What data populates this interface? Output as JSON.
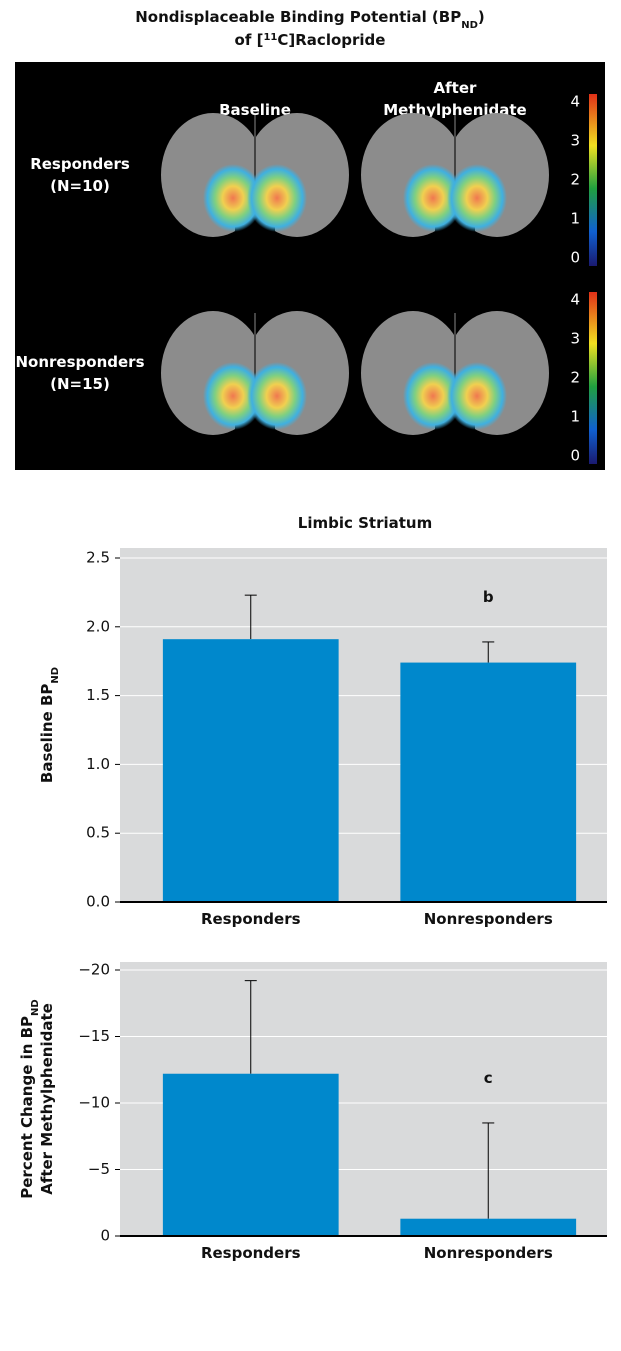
{
  "image_panel": {
    "title": {
      "line1": [
        "Nondisplaceable Binding Potential (BP",
        "ND",
        ")"
      ],
      "line2": [
        "of [",
        "11",
        "C]Raclopride"
      ]
    },
    "columns": [
      [
        "Baseline"
      ],
      [
        "After",
        "Methylphenidate"
      ]
    ],
    "rows": [
      {
        "label": [
          "Responders",
          "(N=10)"
        ],
        "colorbar_ticks": [
          0,
          1,
          2,
          3,
          4
        ]
      },
      {
        "label": [
          "Nonresponders",
          "(N=15)"
        ],
        "colorbar_ticks": [
          0,
          1,
          2,
          3,
          4
        ]
      }
    ]
  },
  "chart_data": [
    {
      "type": "bar",
      "title": "Limbic Striatum",
      "ylabel": [
        [
          "Baseline BP",
          "ND"
        ]
      ],
      "categories": [
        "Responders",
        "Nonresponders"
      ],
      "values": [
        1.91,
        1.74
      ],
      "errors": [
        0.32,
        0.15
      ],
      "annotations": [
        null,
        "b"
      ],
      "color": "#0088cc",
      "grid": true,
      "ylim": [
        0,
        2.5
      ],
      "yticks": [
        {
          "value": 0,
          "label": "0.0"
        },
        0.5,
        {
          "value": 1,
          "label": "1.0"
        },
        1.5,
        {
          "value": 2,
          "label": "2.0"
        },
        2.5
      ]
    },
    {
      "type": "bar",
      "ylabel": [
        [
          "Percent Change in BP",
          "ND"
        ],
        [
          "After Methylphenidate"
        ]
      ],
      "categories": [
        "Responders",
        "Nonresponders"
      ],
      "values": [
        -12.2,
        -1.3
      ],
      "errors": [
        7.0,
        7.2
      ],
      "annotations": [
        null,
        "c"
      ],
      "color": "#0088cc",
      "grid": true,
      "ylim": [
        0,
        -20
      ],
      "yticks": [
        0,
        {
          "value": -5,
          "label": "−5"
        },
        {
          "value": -10,
          "label": "−10"
        },
        {
          "value": -15,
          "label": "−15"
        },
        {
          "value": -20,
          "label": "−20"
        }
      ]
    }
  ]
}
